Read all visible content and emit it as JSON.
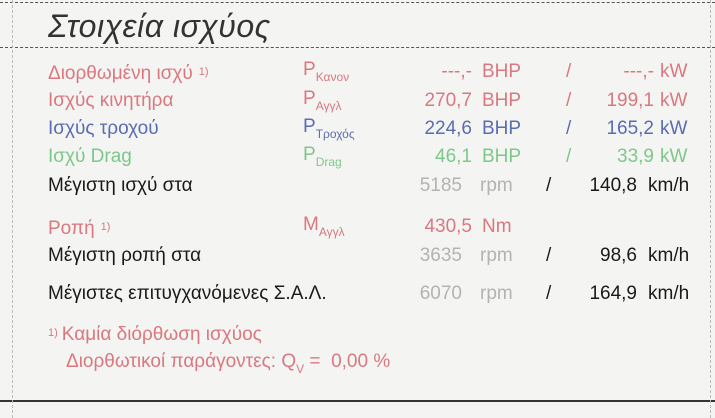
{
  "title": "Στοιχεία ισχύος",
  "colors": {
    "corrected": "#d97880",
    "engine": "#d97880",
    "wheel": "#5a6db2",
    "drag": "#7ec78b",
    "text": "#1a1a1a",
    "rpm": "#b3b3b3"
  },
  "power_rows": [
    {
      "label": "Διορθωμένη ισχύ",
      "note": "1)",
      "symbol": "P",
      "sub": "Κανον",
      "bhp": "---,-",
      "bhp_unit": "BHP",
      "sep": "/",
      "kw": "---,-",
      "kw_unit": "kW"
    },
    {
      "label": "Ισχύς κινητήρα",
      "symbol": "P",
      "sub": "Αγγλ",
      "bhp": "270,7",
      "bhp_unit": "BHP",
      "sep": "/",
      "kw": "199,1",
      "kw_unit": "kW"
    },
    {
      "label": "Ισχύς τροχού",
      "symbol": "P",
      "sub": "Τροχός",
      "bhp": "224,6",
      "bhp_unit": "BHP",
      "sep": "/",
      "kw": "165,2",
      "kw_unit": "kW"
    },
    {
      "label": "Ισχύ Drag",
      "symbol": "P",
      "sub": "Drag",
      "bhp": "46,1",
      "bhp_unit": "BHP",
      "sep": "/",
      "kw": "33,9",
      "kw_unit": "kW"
    }
  ],
  "max_power": {
    "label": "Μέγιστη ισχύ στα",
    "rpm": "5185",
    "rpm_unit": "rpm",
    "sep": "/",
    "speed": "140,8",
    "speed_unit": "km/h"
  },
  "torque": {
    "label": "Ροπή",
    "note": "1)",
    "symbol": "M",
    "sub": "Αγγλ",
    "value": "430,5",
    "unit": "Nm"
  },
  "max_torque": {
    "label": "Μέγιστη ροπή στα",
    "rpm": "3635",
    "rpm_unit": "rpm",
    "sep": "/",
    "speed": "98,6",
    "speed_unit": "km/h"
  },
  "max_rpm": {
    "label": "Μέγιστες επιτυγχανόμενες Σ.Α.Λ.",
    "rpm": "6070",
    "rpm_unit": "rpm",
    "sep": "/",
    "speed": "164,9",
    "speed_unit": "km/h"
  },
  "footnote": {
    "mark": "1)",
    "line1": "Καμία διόρθωση ισχύος",
    "line2": "Διορθωτικοί παράγοντες: Q",
    "line2_sub": "V",
    "line2_rest": " =  0,00 %"
  }
}
